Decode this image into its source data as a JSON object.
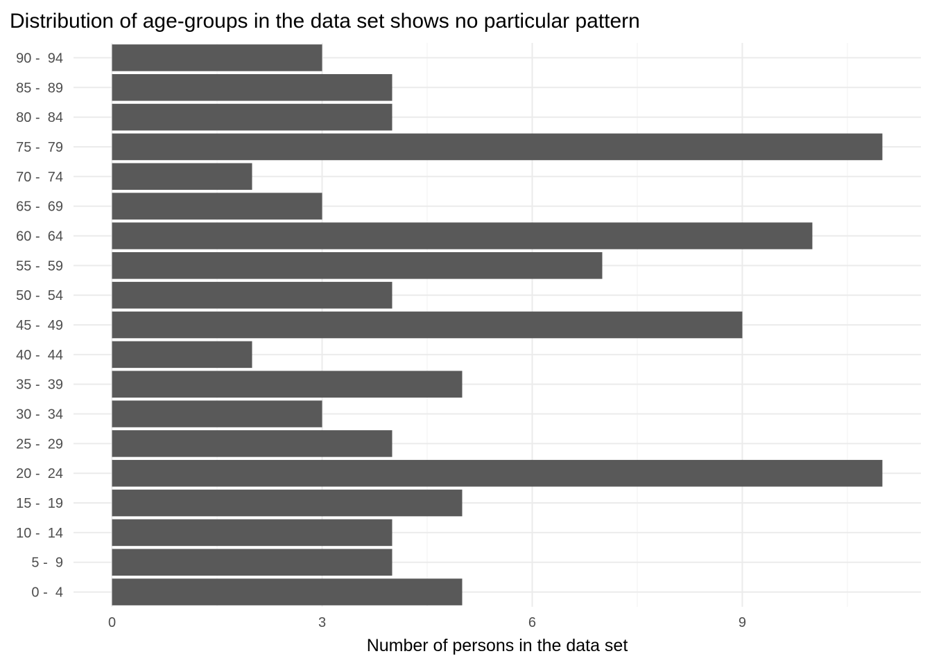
{
  "chart_data": {
    "type": "bar",
    "orientation": "horizontal",
    "title": "Distribution of age-groups in the data set shows no particular pattern",
    "xlabel": "Number of persons in the data set",
    "ylabel": "",
    "categories": [
      "0 -  4",
      "5 -  9",
      "10 -  14",
      "15 -  19",
      "20 -  24",
      "25 -  29",
      "30 -  34",
      "35 -  39",
      "40 -  44",
      "45 -  49",
      "50 -  54",
      "55 -  59",
      "60 -  64",
      "65 -  69",
      "70 -  74",
      "75 -  79",
      "80 -  84",
      "85 -  89",
      "90 -  94"
    ],
    "values": [
      5,
      4,
      4,
      5,
      11,
      4,
      3,
      5,
      2,
      9,
      4,
      7,
      10,
      3,
      2,
      11,
      4,
      4,
      3
    ],
    "x_ticks": [
      0,
      3,
      6,
      9
    ],
    "x_tick_labels": [
      "0",
      "3",
      "6",
      "9"
    ],
    "xlim": [
      -0.55,
      11.55
    ],
    "grid": true,
    "bar_color": "#595959",
    "grid_color": "#ebebeb"
  }
}
